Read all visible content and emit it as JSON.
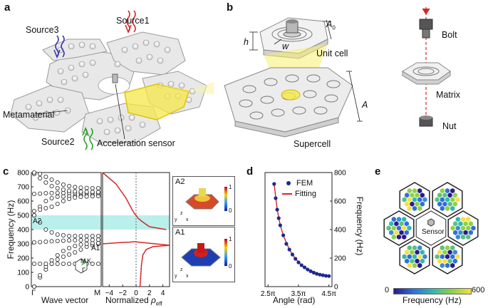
{
  "panels": {
    "a": {
      "letter": "a",
      "sources": [
        "Source3",
        "Source1",
        "Source2"
      ],
      "metamaterial_label": "Metamaterial",
      "sensor_label": "Acceleration sensor",
      "colors": {
        "source1": "#d62728",
        "source2": "#2ca02c",
        "source3": "#3a3aa8",
        "highlight": "#f5e84a"
      }
    },
    "b": {
      "letter": "b",
      "unit_cell_label": "Unit cell",
      "supercell_label": "Supercell",
      "bolt_label": "Bolt",
      "matrix_label": "Matrix",
      "nut_label": "Nut",
      "dim_h": "h",
      "dim_w": "w",
      "dim_A0": "A",
      "dim_A0_sub": "0",
      "dim_A": "A"
    },
    "c": {
      "letter": "c",
      "ylabel": "Frequency (Hz)",
      "yticks": [
        "0",
        "100",
        "200",
        "300",
        "400",
        "500",
        "600",
        "700",
        "800"
      ],
      "xlabel_left": "Wave vector",
      "xticks_left": [
        "Γ",
        "M"
      ],
      "bz_labels": [
        "M",
        "K",
        "Γ"
      ],
      "mode_labels": [
        "A2",
        "A1"
      ],
      "xlabel_mid": "Normalized ",
      "xlabel_mid_sym": "ρ",
      "xlabel_mid_sub": "eff",
      "xticks_mid": [
        "−4",
        "−2",
        "0",
        "2",
        "4"
      ],
      "inset_A2": "A2",
      "inset_A1": "A1",
      "colorbar_ticks": [
        "1",
        "0"
      ],
      "axes_letters": [
        "z",
        "y",
        "x"
      ],
      "bandgap_color": "#a8ece6"
    },
    "d": {
      "letter": "d",
      "legend_fem": "FEM",
      "legend_fit": "Fitting",
      "ylabel": "Frequency (Hz)",
      "xlabel": "Angle (rad)",
      "xticks": [
        "2.5π",
        "3.5π",
        "4.5π"
      ],
      "yticks": [
        "0",
        "200",
        "400",
        "600",
        "800"
      ]
    },
    "e": {
      "letter": "e",
      "sensor_label": "Sensor",
      "colorbar_label": "Frequency (Hz)",
      "colorbar_min": "0",
      "colorbar_max": "600"
    }
  },
  "chart_data": [
    {
      "type": "scatter",
      "panel": "c-left",
      "ylabel": "Frequency (Hz)",
      "xlabel": "Wave vector",
      "ylim": [
        0,
        800
      ],
      "series": [
        {
          "values": [
            0,
            65,
            120,
            160,
            190,
            210,
            225,
            240,
            260,
            280,
            290,
            300
          ]
        },
        {
          "values": [
            0,
            80,
            140,
            185,
            220,
            250,
            270,
            285,
            295,
            300,
            305,
            305
          ]
        },
        {
          "values": [
            310,
            312,
            315,
            318,
            320,
            322,
            324,
            325,
            326,
            327,
            328,
            329
          ]
        },
        {
          "values": [
            160,
            160,
            160,
            160,
            160,
            160,
            160,
            160,
            160,
            160,
            160,
            160
          ]
        },
        {
          "values": [
            500,
            450,
            400,
            380,
            365,
            360,
            355,
            355,
            355,
            355,
            355,
            355
          ]
        },
        {
          "values": [
            500,
            560,
            600,
            620,
            630,
            632,
            634,
            635,
            636,
            637,
            638,
            638
          ]
        },
        {
          "values": [
            530,
            540,
            550,
            560,
            580,
            600,
            615,
            625,
            630,
            632,
            634,
            635
          ]
        },
        {
          "values": [
            650,
            652,
            655,
            656,
            657,
            657,
            657,
            657,
            657,
            657,
            657,
            657
          ]
        },
        {
          "values": [
            790,
            760,
            730,
            705,
            690,
            680,
            672,
            668,
            666,
            665,
            664,
            663
          ]
        },
        {
          "values": [
            800,
            790,
            770,
            750,
            730,
            715,
            705,
            698,
            694,
            692,
            690,
            690
          ]
        }
      ],
      "bandgap": [
        400,
        500
      ]
    },
    {
      "type": "line",
      "panel": "c-mid",
      "xlabel": "Normalized ρeff",
      "xlim": [
        -5,
        5
      ],
      "ylim": [
        0,
        800
      ],
      "series": [
        {
          "points": [
            [
              -5,
              800
            ],
            [
              -3,
              720
            ],
            [
              -1.5,
              620
            ],
            [
              -0.6,
              540
            ],
            [
              -0.2,
              510
            ],
            [
              0,
              500
            ],
            [
              0.3,
              480
            ],
            [
              0.8,
              460
            ],
            [
              2,
              420
            ],
            [
              4.5,
              400
            ]
          ]
        },
        {
          "points": [
            [
              -5,
              300
            ],
            [
              -3.5,
              305
            ],
            [
              -2,
              310
            ],
            [
              -1,
              312
            ],
            [
              -0.3,
              315
            ],
            [
              5,
              290
            ]
          ]
        },
        {
          "points": [
            [
              0.6,
              0
            ],
            [
              0.8,
              150
            ],
            [
              1,
              220
            ],
            [
              1.5,
              260
            ],
            [
              2.5,
              280
            ],
            [
              5,
              290
            ]
          ]
        }
      ]
    },
    {
      "type": "scatter",
      "panel": "d",
      "xlabel": "Angle (rad)",
      "ylabel": "Frequency (Hz)",
      "xlim": [
        2.5,
        4.5
      ],
      "ylim": [
        0,
        800
      ],
      "series": [
        {
          "name": "FEM",
          "x": [
            2.7,
            2.75,
            2.8,
            2.85,
            2.9,
            3.0,
            3.1,
            3.2,
            3.3,
            3.4,
            3.5,
            3.6,
            3.7,
            3.8,
            3.9,
            4.0,
            4.1,
            4.2,
            4.3,
            4.4,
            4.5
          ],
          "y": [
            720,
            620,
            540,
            480,
            430,
            360,
            300,
            260,
            225,
            195,
            170,
            150,
            135,
            120,
            108,
            98,
            90,
            84,
            80,
            76,
            74
          ]
        },
        {
          "name": "Fitting",
          "x": [
            2.7,
            2.8,
            2.9,
            3.0,
            3.2,
            3.4,
            3.6,
            3.8,
            4.0,
            4.2,
            4.5
          ],
          "y": [
            720,
            540,
            430,
            360,
            260,
            195,
            150,
            120,
            98,
            84,
            74
          ]
        }
      ]
    }
  ]
}
